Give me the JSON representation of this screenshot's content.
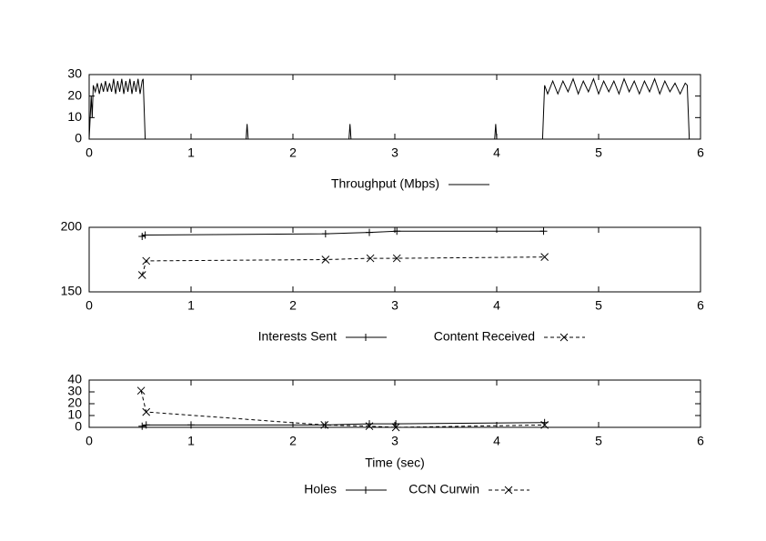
{
  "chart_data": [
    {
      "type": "line",
      "xlim": [
        0,
        6
      ],
      "xticks": [
        0,
        1,
        2,
        3,
        4,
        5,
        6
      ],
      "ylim": [
        0,
        30
      ],
      "yticks": [
        0,
        10,
        20,
        30
      ],
      "series": [
        {
          "name": "Throughput (Mbps)",
          "color": "#000000",
          "line_style": "solid",
          "point": "none",
          "x": [
            0,
            0.02,
            0.03,
            0.04,
            0.06,
            0.08,
            0.1,
            0.12,
            0.14,
            0.16,
            0.18,
            0.2,
            0.22,
            0.24,
            0.26,
            0.28,
            0.3,
            0.32,
            0.34,
            0.36,
            0.38,
            0.4,
            0.42,
            0.44,
            0.46,
            0.48,
            0.5,
            0.52,
            0.53,
            0.55,
            1.54,
            1.55,
            1.56,
            2.55,
            2.56,
            2.57,
            3.98,
            3.99,
            4.0,
            4.45,
            4.47,
            4.5,
            4.55,
            4.6,
            4.65,
            4.7,
            4.75,
            4.8,
            4.85,
            4.9,
            4.95,
            5.0,
            5.05,
            5.1,
            5.15,
            5.2,
            5.25,
            5.3,
            5.35,
            5.4,
            5.45,
            5.5,
            5.55,
            5.6,
            5.65,
            5.7,
            5.75,
            5.8,
            5.85,
            5.87,
            5.89
          ],
          "values": [
            0,
            20,
            10,
            25,
            22,
            26,
            21,
            26,
            22,
            27,
            22,
            26,
            22,
            28,
            21,
            27,
            22,
            28,
            21,
            27,
            22,
            28,
            21,
            27,
            22,
            28,
            21,
            27,
            28,
            0,
            0,
            7,
            0,
            0,
            7,
            0,
            0,
            7,
            0,
            0,
            25,
            21,
            27,
            21,
            27,
            22,
            28,
            21,
            27,
            22,
            28,
            21,
            27,
            22,
            27,
            21,
            28,
            22,
            27,
            21,
            27,
            22,
            28,
            21,
            27,
            22,
            26,
            21,
            26,
            25,
            0
          ]
        }
      ]
    },
    {
      "type": "line",
      "xlim": [
        0,
        6
      ],
      "xticks": [
        0,
        1,
        2,
        3,
        4,
        5,
        6
      ],
      "ylim": [
        150,
        200
      ],
      "yticks": [
        150,
        200
      ],
      "series": [
        {
          "name": "Interests Sent",
          "color": "#000000",
          "line_style": "solid",
          "point": "plus",
          "x": [
            0.52,
            0.55,
            2.32,
            2.75,
            3.02,
            4.46
          ],
          "values": [
            193,
            194,
            195,
            196,
            197,
            197
          ]
        },
        {
          "name": "Content Received",
          "color": "#000000",
          "line_style": "dashed",
          "point": "cross",
          "x": [
            0.52,
            0.56,
            2.32,
            2.76,
            3.02,
            4.47
          ],
          "values": [
            163,
            174,
            175,
            176,
            176,
            177
          ]
        }
      ]
    },
    {
      "type": "line",
      "xlabel": "Time (sec)",
      "xlim": [
        0,
        6
      ],
      "xticks": [
        0,
        1,
        2,
        3,
        4,
        5,
        6
      ],
      "ylim": [
        0,
        40
      ],
      "yticks": [
        0,
        10,
        20,
        30,
        40
      ],
      "series": [
        {
          "name": "Holes",
          "color": "#000000",
          "line_style": "solid",
          "point": "plus",
          "x": [
            0.52,
            0.56,
            1.0,
            2.32,
            2.75,
            3.01,
            4.47
          ],
          "values": [
            1,
            2,
            2,
            2,
            3,
            3,
            4
          ]
        },
        {
          "name": "CCN Curwin",
          "color": "#000000",
          "line_style": "dashed",
          "point": "cross",
          "x": [
            0.51,
            0.56,
            2.31,
            2.75,
            3.01,
            4.47
          ],
          "values": [
            31,
            13,
            2,
            1,
            0,
            2
          ]
        }
      ]
    }
  ]
}
